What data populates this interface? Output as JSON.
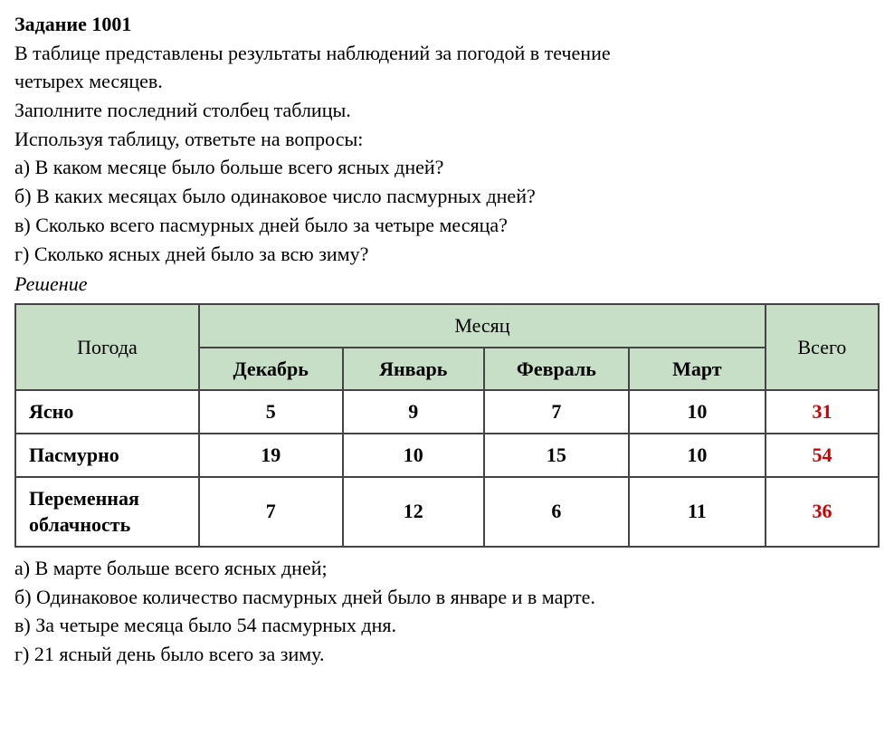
{
  "title": "Задание 1001",
  "intro": {
    "l1": "В таблице представлены результаты наблюдений за погодой в течение",
    "l2": "четырех месяцев.",
    "l3": "Заполните последний столбец таблицы.",
    "l4": "Используя таблицу, ответьте на вопросы:",
    "qa": "а) В каком месяце было больше всего ясных дней?",
    "qb": "б) В каких месяцах было одинаковое число пасмурных дней?",
    "qc": "в) Сколько всего пасмурных дней было за четыре месяца?",
    "qd": "г) Сколько ясных дней было за всю зиму?"
  },
  "solution_label": "Решение",
  "table": {
    "header_pogoda": "Погода",
    "header_month": "Месяц",
    "header_total": "Всего",
    "months": {
      "dec": "Декабрь",
      "jan": "Январь",
      "feb": "Февраль",
      "mar": "Март"
    },
    "rows": {
      "clear": {
        "label": "Ясно",
        "dec": "5",
        "jan": "9",
        "feb": "7",
        "mar": "10",
        "total": "31"
      },
      "overcast": {
        "label": "Пасмурно",
        "dec": "19",
        "jan": "10",
        "feb": "15",
        "mar": "10",
        "total": "54"
      },
      "variable": {
        "label": "Переменная облачность",
        "dec": "7",
        "jan": "12",
        "feb": "6",
        "mar": "11",
        "total": "36"
      }
    }
  },
  "answers": {
    "a": "а) В марте больше всего ясных дней;",
    "b": "б) Одинаковое количество пасмурных дней было в январе и в марте.",
    "c": "в) За четыре месяца было 54 пасмурных дня.",
    "d": "г) 21 ясный день было всего за зиму."
  }
}
